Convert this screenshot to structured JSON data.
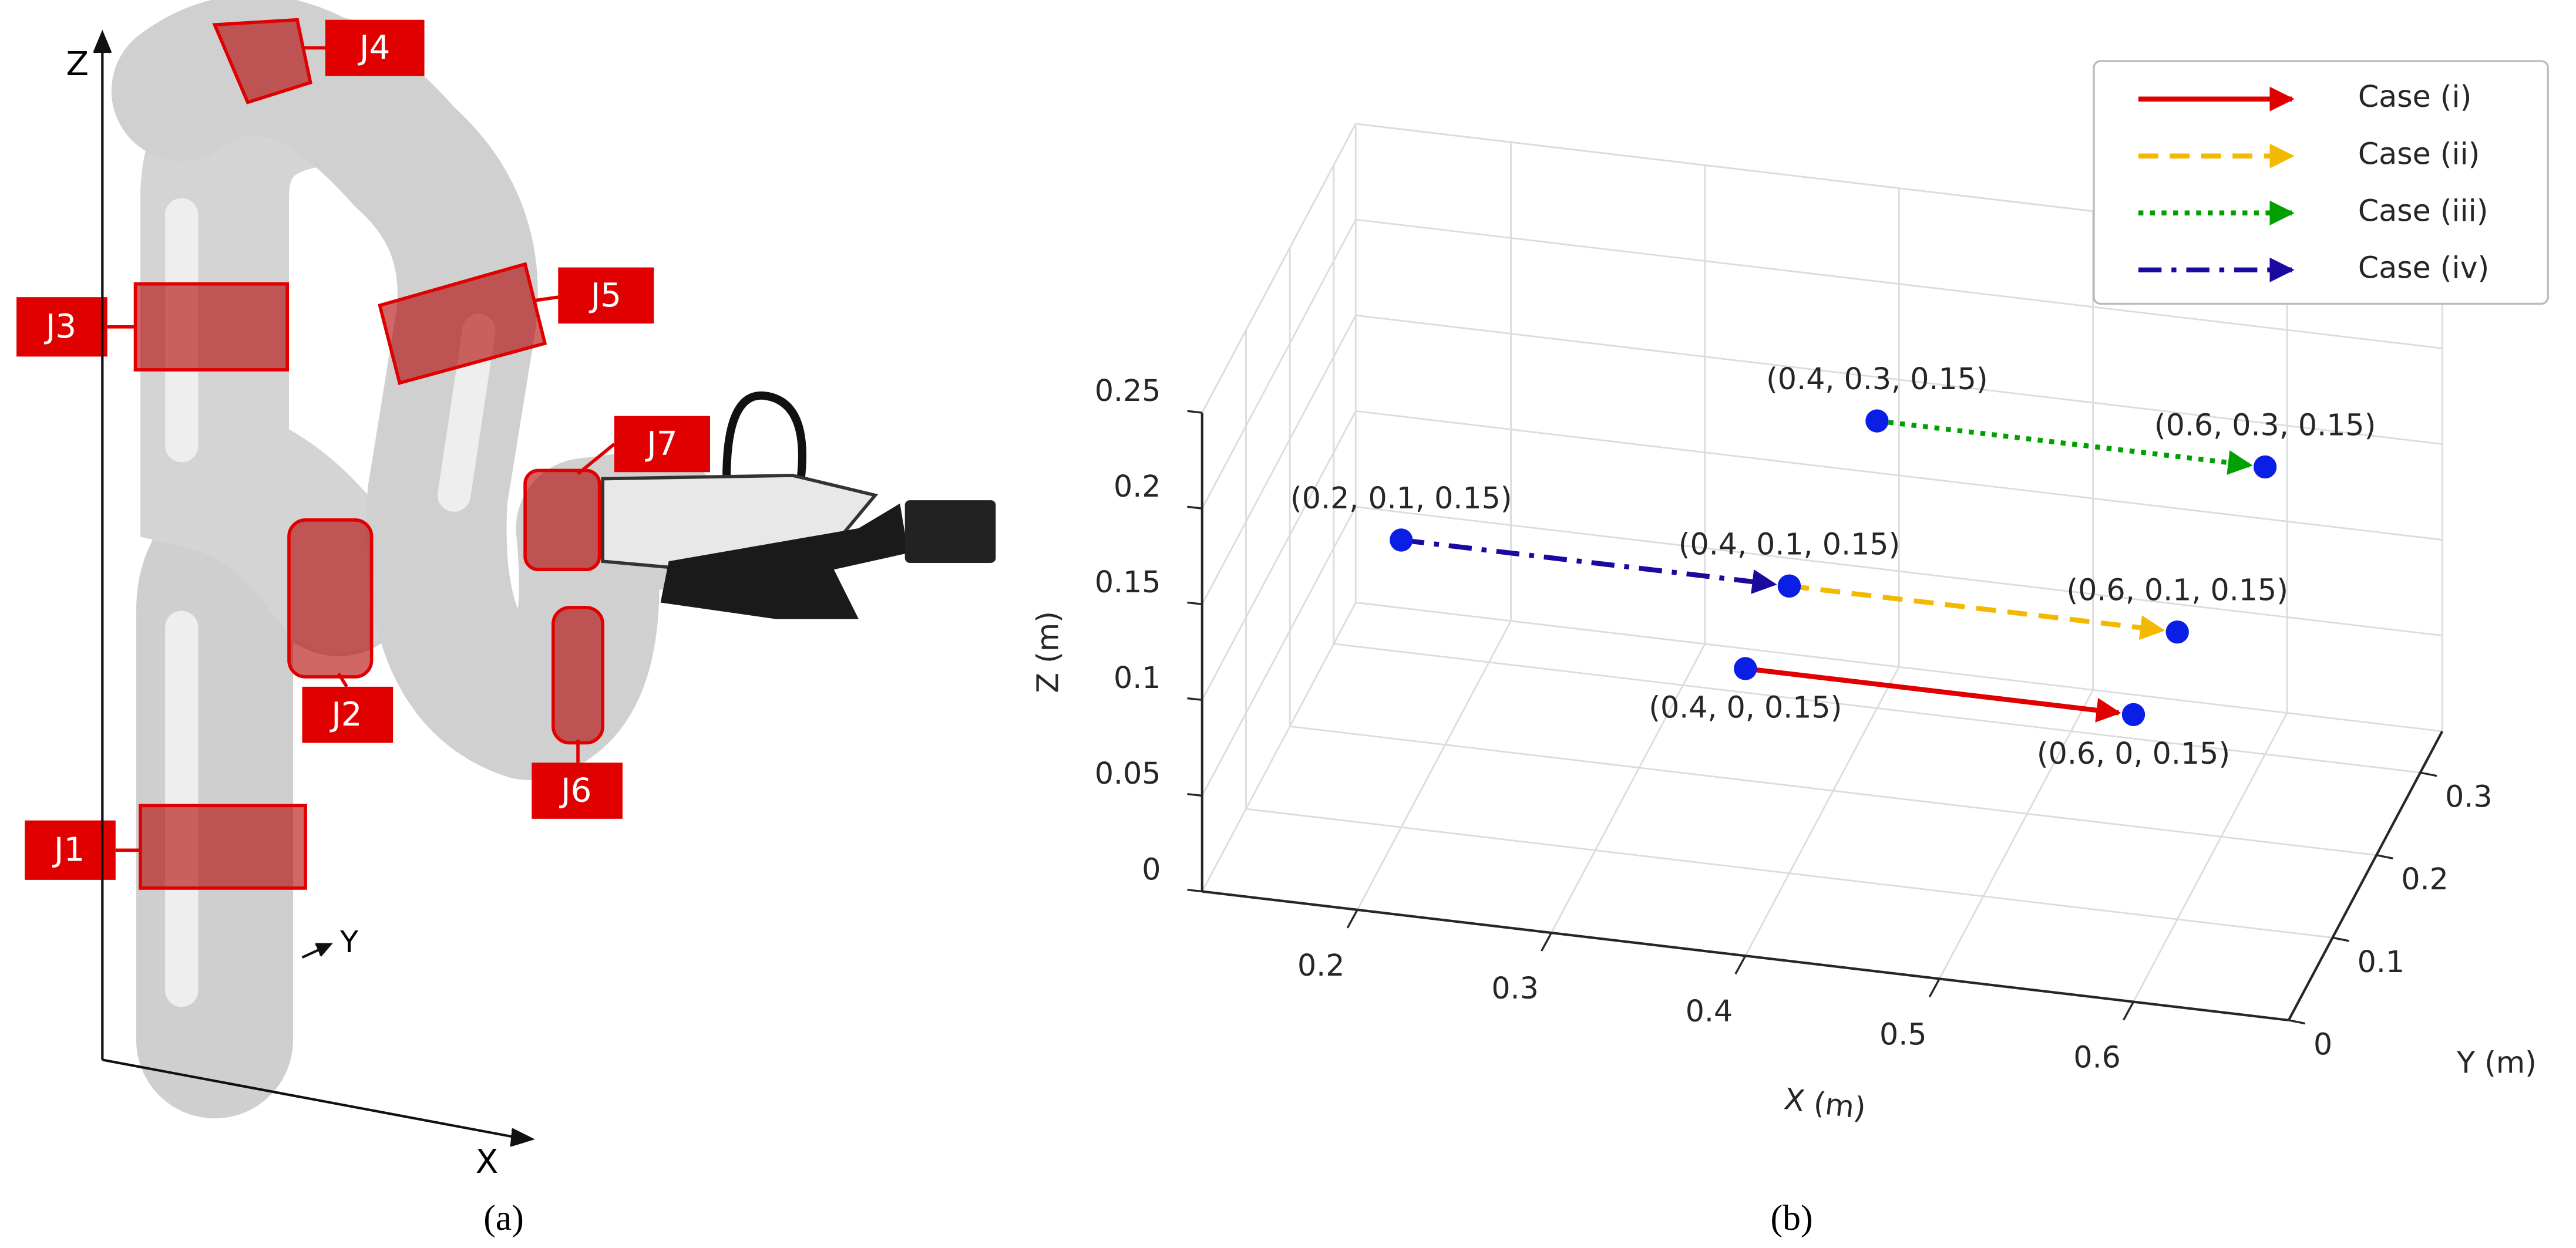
{
  "panel_a": {
    "axis_labels": {
      "z": "Z",
      "y": "Y",
      "x": "X"
    },
    "joint_labels": [
      "J1",
      "J2",
      "J3",
      "J4",
      "J5",
      "J6",
      "J7"
    ]
  },
  "captions": {
    "a": "(a)",
    "b": "(b)"
  },
  "chart_data": {
    "type": "line3d",
    "xlabel": "X (m)",
    "ylabel": "Y (m)",
    "zlabel": "Z (m)",
    "xlim": [
      0.12,
      0.68
    ],
    "ylim": [
      0,
      0.35
    ],
    "zlim": [
      0,
      0.25
    ],
    "xticks": [
      0.2,
      0.3,
      0.4,
      0.5,
      0.6
    ],
    "yticks": [
      0,
      0.1,
      0.2,
      0.3
    ],
    "zticks": [
      0,
      0.05,
      0.1,
      0.15,
      0.2,
      0.25
    ],
    "grid": true,
    "legend": "upper right",
    "marker_color": "#0a1ee6",
    "series": [
      {
        "name": "Case (i)",
        "color": "#e00000",
        "linestyle": "solid",
        "x": [
          0.4,
          0.6
        ],
        "y": [
          0,
          0
        ],
        "z": [
          0.15,
          0.15
        ],
        "point_labels": [
          "(0.4, 0, 0.15)",
          "(0.6, 0, 0.15)"
        ]
      },
      {
        "name": "Case (ii)",
        "color": "#f5b800",
        "linestyle": "dashed",
        "x": [
          0.4,
          0.6
        ],
        "y": [
          0.1,
          0.1
        ],
        "z": [
          0.15,
          0.15
        ],
        "point_labels": [
          "(0.4, 0.1, 0.15)",
          "(0.6, 0.1, 0.15)"
        ]
      },
      {
        "name": "Case (iii)",
        "color": "#00a000",
        "linestyle": "dotted",
        "x": [
          0.4,
          0.6
        ],
        "y": [
          0.3,
          0.3
        ],
        "z": [
          0.15,
          0.15
        ],
        "point_labels": [
          "(0.4, 0.3, 0.15)",
          "(0.6, 0.3, 0.15)"
        ]
      },
      {
        "name": "Case (iv)",
        "color": "#1a0aa0",
        "linestyle": "dashdot",
        "x": [
          0.2,
          0.4
        ],
        "y": [
          0.1,
          0.1
        ],
        "z": [
          0.15,
          0.15
        ],
        "point_labels": [
          "(0.2, 0.1, 0.15)",
          null
        ]
      }
    ]
  }
}
